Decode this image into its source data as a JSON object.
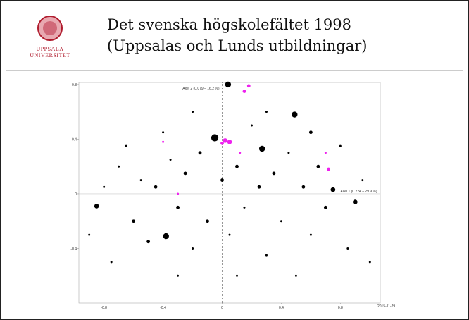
{
  "header": {
    "title": [
      "Det svenska högskolefältet 1998",
      "(Uppsalas och Lunds utbildningar)"
    ],
    "logo_text": [
      "UPPSALA",
      "UNIVERSITET"
    ]
  },
  "footer": {
    "date": "2015-11-29"
  },
  "chart_data": {
    "type": "scatter",
    "x_label": "Axel 1 (0.224 – 29.9 %)",
    "y_label": "Axel 2 (0.079 – 16.2 %)",
    "xlim": [
      -0.97,
      1.07
    ],
    "ylim": [
      -0.8,
      0.815
    ],
    "xticks": [
      -0.8,
      -0.4,
      0,
      0.4,
      0.8
    ],
    "yticks": [
      0.8,
      0.4,
      0,
      -0.4
    ],
    "series": [
      {
        "color": "#000000",
        "x": [
          -0.9,
          -0.85,
          -0.7,
          -0.6,
          -0.55,
          -0.5,
          -0.45,
          -0.38,
          -0.35,
          -0.3,
          -0.25,
          -0.2,
          -0.15,
          -0.1,
          -0.05,
          0,
          0.04,
          0.05,
          0.1,
          0.15,
          0.2,
          0.25,
          0.27,
          0.3,
          0.35,
          0.4,
          0.45,
          0.49,
          0.55,
          0.6,
          0.65,
          0.7,
          0.75,
          0.8,
          0.85,
          0.9,
          0.95,
          1.0,
          -0.75,
          -0.65,
          -0.4,
          -0.2,
          0.1,
          0.5,
          -0.3,
          0.6,
          -0.8,
          0.3
        ],
        "values": [
          -0.3,
          -0.09,
          0.2,
          -0.2,
          0.1,
          -0.35,
          0.05,
          -0.31,
          0.25,
          -0.1,
          0.15,
          -0.4,
          0.3,
          -0.2,
          0.41,
          0.1,
          0.8,
          -0.3,
          0.2,
          -0.1,
          0.5,
          0.05,
          0.33,
          -0.45,
          0.15,
          -0.2,
          0.3,
          0.58,
          0.05,
          -0.3,
          0.2,
          -0.1,
          0.03,
          0.35,
          -0.4,
          -0.06,
          0.1,
          -0.5,
          -0.5,
          0.35,
          0.45,
          0.6,
          -0.6,
          -0.6,
          -0.6,
          0.45,
          0.05,
          0.6
        ],
        "sizes": [
          1,
          3,
          1,
          2,
          1,
          2,
          2,
          4,
          1,
          2,
          2,
          1,
          2,
          2,
          5,
          2,
          4,
          1,
          2,
          1,
          1,
          2,
          4,
          1,
          2,
          1,
          1,
          4,
          2,
          1,
          2,
          2,
          3,
          1,
          1,
          3,
          1,
          1,
          1,
          1,
          1,
          1,
          1,
          1,
          1,
          2,
          1,
          1
        ]
      },
      {
        "color": "#ee22ee",
        "x": [
          0.18,
          0.15,
          0.02,
          0.05,
          0.0,
          0.72,
          0.7,
          -0.4,
          0.12,
          -0.3
        ],
        "values": [
          0.79,
          0.75,
          0.39,
          0.38,
          0.37,
          0.18,
          0.3,
          0.38,
          0.3,
          0.0
        ],
        "sizes": [
          2,
          2,
          3,
          3,
          2,
          2,
          1,
          1,
          1,
          1
        ]
      }
    ]
  }
}
